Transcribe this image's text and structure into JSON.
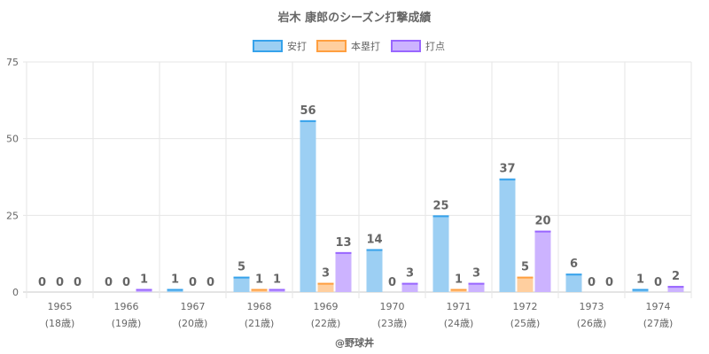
{
  "chart_data": {
    "type": "bar",
    "title": "岩木 康郎のシーズン打撃成績",
    "categories": [
      "1965",
      "1966",
      "1967",
      "1968",
      "1969",
      "1970",
      "1971",
      "1972",
      "1973",
      "1974"
    ],
    "category_sublabels": [
      "(18歳)",
      "(19歳)",
      "(20歳)",
      "(21歳)",
      "(22歳)",
      "(23歳)",
      "(24歳)",
      "(25歳)",
      "(26歳)",
      "(27歳)"
    ],
    "series": [
      {
        "name": "安打",
        "values": [
          0,
          0,
          1,
          5,
          56,
          14,
          25,
          37,
          6,
          1
        ],
        "fill": "#9ccff3",
        "border": "#36a2eb"
      },
      {
        "name": "本塁打",
        "values": [
          0,
          0,
          0,
          1,
          3,
          0,
          1,
          5,
          0,
          0
        ],
        "fill": "#ffcf9f",
        "border": "#ff9f40"
      },
      {
        "name": "打点",
        "values": [
          0,
          1,
          0,
          1,
          13,
          3,
          3,
          20,
          0,
          2
        ],
        "fill": "#ccb3ff",
        "border": "#9966ff"
      }
    ],
    "ylim": [
      0,
      75
    ],
    "yticks": [
      0,
      25,
      50,
      75
    ],
    "grid": true,
    "legend_position": "top",
    "show_value_labels": true
  },
  "credit": "@野球丼"
}
